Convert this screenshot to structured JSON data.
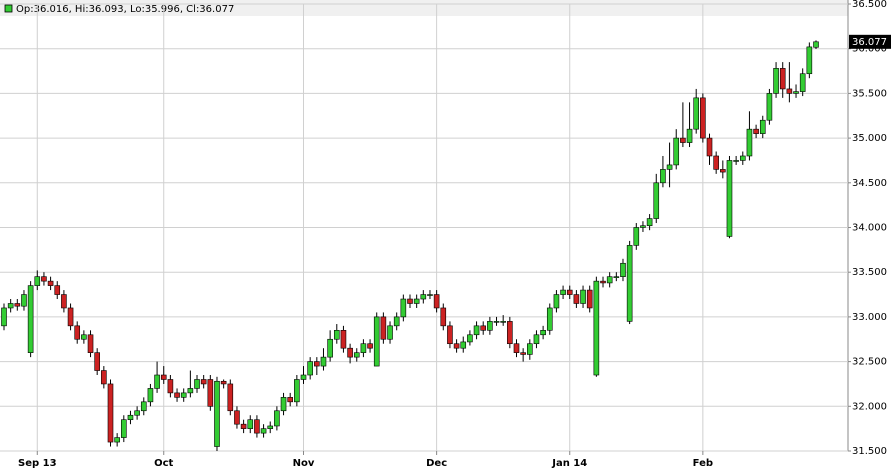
{
  "chart_data": {
    "type": "candlestick",
    "legend_text": "Op:36.016, Hi:36.093, Lo:35.996, Cl:36.077",
    "up_color": "#33cc33",
    "down_color": "#cc2222",
    "grid": true,
    "categories": [
      null,
      null,
      null,
      null,
      null,
      "Sep 13",
      null,
      null,
      null,
      null,
      null,
      null,
      null,
      null,
      null,
      null,
      null,
      null,
      null,
      null,
      null,
      null,
      null,
      null,
      "Oct",
      null,
      null,
      null,
      null,
      null,
      null,
      null,
      null,
      null,
      null,
      null,
      null,
      null,
      null,
      null,
      null,
      null,
      null,
      null,
      null,
      "Nov",
      null,
      null,
      null,
      null,
      null,
      null,
      null,
      null,
      null,
      null,
      null,
      null,
      null,
      null,
      null,
      null,
      null,
      null,
      null,
      "Dec",
      null,
      null,
      null,
      null,
      null,
      null,
      null,
      null,
      null,
      null,
      null,
      null,
      null,
      null,
      null,
      null,
      null,
      null,
      null,
      "Jan 14",
      null,
      null,
      null,
      null,
      null,
      null,
      null,
      null,
      null,
      null,
      null,
      null,
      null,
      null,
      null,
      null,
      null,
      null,
      null,
      "Feb",
      null,
      null,
      null,
      null,
      null,
      null,
      null,
      null,
      null,
      null,
      null,
      null,
      null,
      null,
      null,
      null,
      null
    ],
    "open": [
      32.9,
      33.1,
      33.15,
      33.12,
      32.6,
      33.35,
      33.45,
      33.4,
      33.35,
      33.25,
      33.1,
      32.9,
      32.75,
      32.8,
      32.6,
      32.4,
      32.25,
      31.6,
      31.65,
      31.85,
      31.9,
      31.95,
      32.05,
      32.2,
      32.35,
      32.3,
      32.15,
      32.1,
      32.15,
      32.2,
      32.3,
      32.3,
      31.55,
      32.28,
      32.25,
      31.95,
      31.8,
      31.75,
      31.85,
      31.7,
      31.75,
      31.78,
      31.95,
      32.1,
      32.05,
      32.3,
      32.35,
      32.5,
      32.45,
      32.55,
      32.75,
      32.85,
      32.65,
      32.55,
      32.6,
      32.7,
      32.45,
      33.0,
      32.75,
      32.9,
      33.0,
      33.2,
      33.15,
      33.2,
      33.25,
      33.25,
      33.1,
      32.9,
      32.7,
      32.65,
      32.72,
      32.8,
      32.9,
      32.85,
      32.95,
      32.95,
      32.95,
      32.7,
      32.6,
      32.58,
      32.7,
      32.8,
      32.85,
      33.1,
      33.25,
      33.3,
      33.25,
      33.15,
      33.3,
      32.35,
      33.4,
      33.38,
      33.45,
      33.45,
      32.95,
      33.8,
      34.0,
      34.02,
      34.1,
      34.5,
      34.65,
      34.7,
      35.0,
      34.95,
      35.1,
      35.45,
      35.0,
      34.8,
      34.65,
      33.9,
      34.75,
      34.75,
      34.8,
      35.1,
      35.05,
      35.2,
      35.5,
      35.78,
      35.55,
      35.5,
      35.52,
      35.72,
      36.016
    ],
    "high": [
      33.15,
      33.2,
      33.2,
      33.3,
      33.4,
      33.52,
      33.5,
      33.45,
      33.4,
      33.3,
      33.15,
      32.95,
      32.85,
      32.85,
      32.65,
      32.45,
      32.3,
      31.7,
      31.9,
      31.95,
      32.0,
      32.1,
      32.25,
      32.5,
      32.45,
      32.35,
      32.2,
      32.2,
      32.4,
      32.35,
      32.35,
      32.35,
      32.33,
      32.3,
      32.3,
      32.0,
      31.85,
      31.9,
      31.9,
      31.8,
      31.83,
      32.0,
      32.15,
      32.15,
      32.35,
      32.45,
      32.55,
      32.55,
      32.65,
      32.85,
      32.92,
      32.9,
      32.7,
      32.65,
      32.75,
      32.75,
      33.05,
      33.05,
      32.95,
      33.05,
      33.25,
      33.25,
      33.25,
      33.3,
      33.3,
      33.3,
      33.15,
      32.95,
      32.75,
      32.78,
      32.85,
      32.95,
      32.95,
      33.0,
      33.0,
      33.02,
      33.0,
      32.75,
      32.65,
      32.75,
      32.85,
      32.9,
      33.15,
      33.3,
      33.35,
      33.35,
      33.3,
      33.35,
      33.35,
      33.45,
      33.45,
      33.5,
      33.5,
      33.65,
      33.85,
      34.05,
      34.07,
      34.15,
      34.6,
      34.8,
      34.95,
      35.1,
      35.4,
      35.4,
      35.55,
      35.5,
      35.05,
      34.85,
      34.75,
      34.8,
      34.8,
      34.85,
      35.3,
      35.15,
      35.25,
      35.55,
      35.85,
      35.85,
      35.85,
      35.6,
      35.78,
      36.07,
      36.093
    ],
    "low": [
      32.85,
      33.05,
      33.07,
      33.07,
      32.55,
      33.3,
      33.35,
      33.3,
      33.2,
      33.05,
      32.85,
      32.7,
      32.7,
      32.55,
      32.35,
      32.2,
      31.55,
      31.55,
      31.6,
      31.8,
      31.85,
      31.9,
      32.0,
      32.15,
      32.25,
      32.1,
      32.05,
      32.05,
      32.1,
      32.15,
      32.2,
      31.95,
      31.5,
      32.2,
      31.9,
      31.75,
      31.7,
      31.7,
      31.65,
      31.65,
      31.7,
      31.73,
      31.9,
      32.0,
      32.0,
      32.25,
      32.3,
      32.35,
      32.4,
      32.5,
      32.7,
      32.6,
      32.48,
      32.5,
      32.55,
      32.6,
      32.45,
      32.7,
      32.7,
      32.85,
      32.95,
      33.1,
      33.1,
      33.15,
      33.2,
      33.05,
      32.85,
      32.65,
      32.6,
      32.6,
      32.68,
      32.75,
      32.8,
      32.8,
      32.9,
      32.9,
      32.65,
      32.55,
      32.5,
      32.52,
      32.65,
      32.75,
      32.8,
      33.05,
      33.2,
      33.2,
      33.1,
      33.1,
      33.05,
      32.33,
      33.33,
      33.33,
      33.4,
      33.4,
      32.92,
      33.75,
      33.95,
      33.97,
      34.05,
      34.45,
      34.45,
      34.65,
      34.9,
      34.9,
      35.05,
      34.95,
      34.7,
      34.6,
      34.55,
      33.88,
      34.7,
      34.7,
      34.75,
      35.0,
      35.0,
      35.15,
      35.45,
      35.45,
      35.4,
      35.45,
      35.47,
      35.67,
      35.996
    ],
    "close": [
      33.1,
      33.15,
      33.12,
      33.25,
      33.35,
      33.45,
      33.4,
      33.35,
      33.25,
      33.1,
      32.9,
      32.75,
      32.8,
      32.6,
      32.4,
      32.25,
      31.6,
      31.65,
      31.85,
      31.9,
      31.95,
      32.05,
      32.2,
      32.35,
      32.3,
      32.15,
      32.1,
      32.15,
      32.2,
      32.3,
      32.25,
      32.0,
      32.28,
      32.25,
      31.95,
      31.8,
      31.75,
      31.85,
      31.7,
      31.75,
      31.78,
      31.95,
      32.1,
      32.05,
      32.3,
      32.35,
      32.5,
      32.45,
      32.55,
      32.75,
      32.85,
      32.65,
      32.55,
      32.6,
      32.7,
      32.65,
      33.0,
      32.75,
      32.9,
      33.0,
      33.2,
      33.15,
      33.2,
      33.25,
      33.25,
      33.1,
      32.9,
      32.7,
      32.65,
      32.72,
      32.8,
      32.9,
      32.85,
      32.95,
      32.95,
      32.95,
      32.7,
      32.6,
      32.58,
      32.7,
      32.8,
      32.85,
      33.1,
      33.25,
      33.3,
      33.25,
      33.15,
      33.3,
      33.1,
      33.4,
      33.38,
      33.45,
      33.45,
      33.6,
      33.8,
      34.0,
      34.02,
      34.1,
      34.5,
      34.65,
      34.7,
      35.0,
      34.95,
      35.1,
      35.45,
      35.0,
      34.8,
      34.65,
      34.62,
      34.75,
      34.75,
      34.8,
      35.1,
      35.05,
      35.2,
      35.5,
      35.78,
      35.55,
      35.5,
      35.52,
      35.72,
      36.02,
      36.077
    ],
    "ylim": [
      31.5,
      36.5
    ],
    "yticks": [
      {
        "value": 31.5,
        "label": "31.500"
      },
      {
        "value": 32,
        "label": "32.000"
      },
      {
        "value": 32.5,
        "label": "32.500"
      },
      {
        "value": 33,
        "label": "33.000"
      },
      {
        "value": 33.5,
        "label": "33.500"
      },
      {
        "value": 34,
        "label": "34.000"
      },
      {
        "value": 34.5,
        "label": "34.500"
      },
      {
        "value": 35,
        "label": "35.000"
      },
      {
        "value": 35.5,
        "label": "35.500"
      },
      {
        "value": 36,
        "label": "36.000"
      },
      {
        "value": 36.5,
        "label": "36.500"
      }
    ]
  }
}
